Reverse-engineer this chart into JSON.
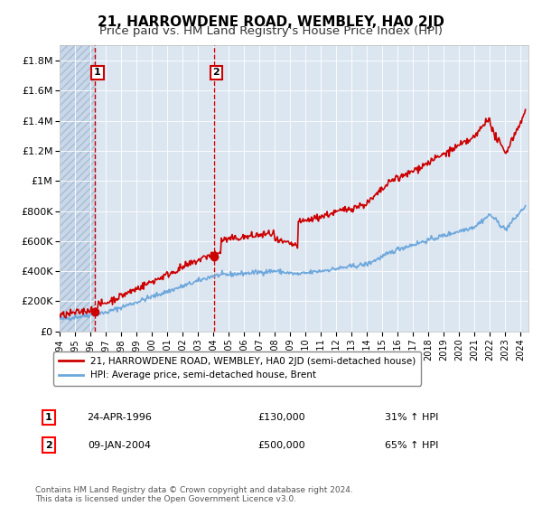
{
  "title": "21, HARROWDENE ROAD, WEMBLEY, HA0 2JD",
  "subtitle": "Price paid vs. HM Land Registry's House Price Index (HPI)",
  "xlim": [
    1994.0,
    2024.5
  ],
  "ylim": [
    0,
    1900000
  ],
  "yticks": [
    0,
    200000,
    400000,
    600000,
    800000,
    1000000,
    1200000,
    1400000,
    1600000,
    1800000
  ],
  "ytick_labels": [
    "£0",
    "£200K",
    "£400K",
    "£600K",
    "£800K",
    "£1M",
    "£1.2M",
    "£1.4M",
    "£1.6M",
    "£1.8M"
  ],
  "xticks": [
    1994,
    1995,
    1996,
    1997,
    1998,
    1999,
    2000,
    2001,
    2002,
    2003,
    2004,
    2005,
    2006,
    2007,
    2008,
    2009,
    2010,
    2011,
    2012,
    2013,
    2014,
    2015,
    2016,
    2017,
    2018,
    2019,
    2020,
    2021,
    2022,
    2023,
    2024
  ],
  "hpi_color": "#6fa8dc",
  "price_color": "#cc0000",
  "marker_color": "#cc0000",
  "vline_color": "#cc0000",
  "background_color": "#dce6f1",
  "hatch_region_color": "#c8d8ea",
  "sale1_x": 1996.31,
  "sale1_y": 130000,
  "sale1_label": "1",
  "sale1_date": "24-APR-1996",
  "sale1_price": "£130,000",
  "sale1_hpi": "31% ↑ HPI",
  "sale2_x": 2004.03,
  "sale2_y": 500000,
  "sale2_label": "2",
  "sale2_date": "09-JAN-2004",
  "sale2_price": "£500,000",
  "sale2_hpi": "65% ↑ HPI",
  "legend_line1": "21, HARROWDENE ROAD, WEMBLEY, HA0 2JD (semi-detached house)",
  "legend_line2": "HPI: Average price, semi-detached house, Brent",
  "footnote": "Contains HM Land Registry data © Crown copyright and database right 2024.\nThis data is licensed under the Open Government Licence v3.0.",
  "title_fontsize": 11,
  "subtitle_fontsize": 9.5
}
